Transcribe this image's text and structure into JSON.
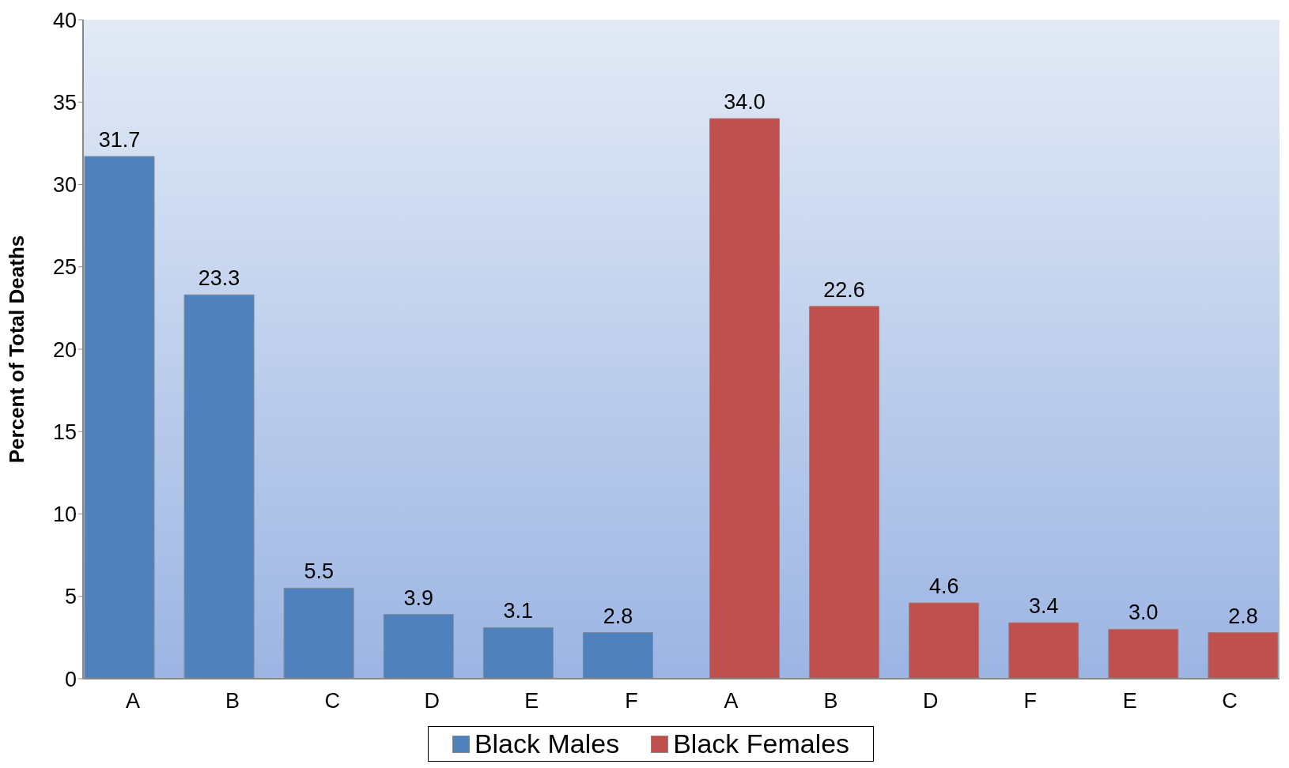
{
  "chart_data": {
    "type": "bar",
    "ylabel": "Percent of Total Deaths",
    "categories": [
      "A",
      "B",
      "C",
      "D",
      "E",
      "F",
      "A",
      "B",
      "D",
      "F",
      "E",
      "C"
    ],
    "series": [
      {
        "name": "Black Males",
        "color": "#4f81bd",
        "values": [
          31.7,
          23.3,
          5.5,
          3.9,
          3.1,
          2.8,
          null,
          null,
          null,
          null,
          null,
          null
        ],
        "value_labels": [
          "31.7",
          "23.3",
          "5.5",
          "3.9",
          "3.1",
          "2.8",
          null,
          null,
          null,
          null,
          null,
          null
        ]
      },
      {
        "name": "Black Females",
        "color": "#c0504d",
        "values": [
          null,
          null,
          null,
          null,
          null,
          null,
          34,
          22.6,
          4.6,
          3.4,
          3,
          2.8
        ],
        "value_labels": [
          null,
          null,
          null,
          null,
          null,
          null,
          "34.0",
          "22.6",
          "4.6",
          "3.4",
          "3.0",
          "2.8"
        ]
      }
    ],
    "ylim": [
      0,
      40
    ],
    "yticks": [
      0,
      5,
      10,
      15,
      20,
      25,
      30,
      35,
      40
    ],
    "legend": "bottom"
  }
}
